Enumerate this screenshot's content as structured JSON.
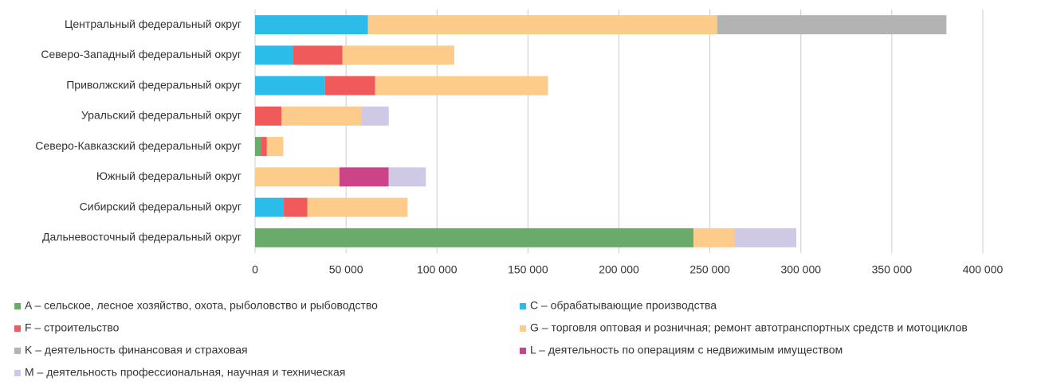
{
  "chart_data": {
    "type": "stacked-barh",
    "categories": [
      "Центральный федеральный округ",
      "Северо-Западный федеральный округ",
      "Приволжский федеральный округ",
      "Уральский федеральный округ",
      "Северо-Кавказский федеральный округ",
      "Южный федеральный округ",
      "Сибирский федеральный округ",
      "Дальневосточный федеральный округ"
    ],
    "series": [
      {
        "name": "A – сельское, лесное хозяйство, охота, рыболовство и рыбоводство",
        "color": "#6aaa6a",
        "values": [
          null,
          null,
          null,
          null,
          3500,
          null,
          null,
          241000
        ]
      },
      {
        "name": "C – обрабатывающие производства",
        "color": "#2bbcea",
        "values": [
          62000,
          21000,
          38500,
          null,
          null,
          null,
          15800,
          null
        ]
      },
      {
        "name": "F – строительство",
        "color": "#f05a5a",
        "values": [
          null,
          27000,
          27500,
          14500,
          3000,
          null,
          13000,
          null
        ]
      },
      {
        "name": "G – торговля оптовая и розничная; ремонт автотранспортных средств и мотоциклов",
        "color": "#fdcb8a",
        "values": [
          192000,
          61500,
          95000,
          44000,
          9000,
          46400,
          55000,
          22500
        ]
      },
      {
        "name": "K – деятельность финансовая и страховая",
        "color": "#b3b3b3",
        "values": [
          126000,
          null,
          null,
          null,
          null,
          null,
          null,
          null
        ]
      },
      {
        "name": "L – деятельность по операциям с недвижимым имуществом",
        "color": "#cc4488",
        "values": [
          null,
          null,
          null,
          null,
          null,
          27000,
          null,
          null
        ]
      },
      {
        "name": "M – деятельность профессиональная, научная и техническая",
        "color": "#cfc9e6",
        "values": [
          null,
          null,
          null,
          15000,
          null,
          20500,
          null,
          34000
        ]
      }
    ],
    "xlim": [
      0,
      400000
    ],
    "xticks": [
      0,
      {
        "value": 50000,
        "label": "50 000"
      },
      {
        "value": 100000,
        "label": "100 000"
      },
      {
        "value": 150000,
        "label": "150 000"
      },
      {
        "value": 200000,
        "label": "200 000"
      },
      {
        "value": 250000,
        "label": "250 000"
      },
      {
        "value": 300000,
        "label": "300 000"
      },
      {
        "value": 350000,
        "label": "350 000"
      },
      {
        "value": 400000,
        "label": "400 000"
      }
    ],
    "grid": true
  }
}
